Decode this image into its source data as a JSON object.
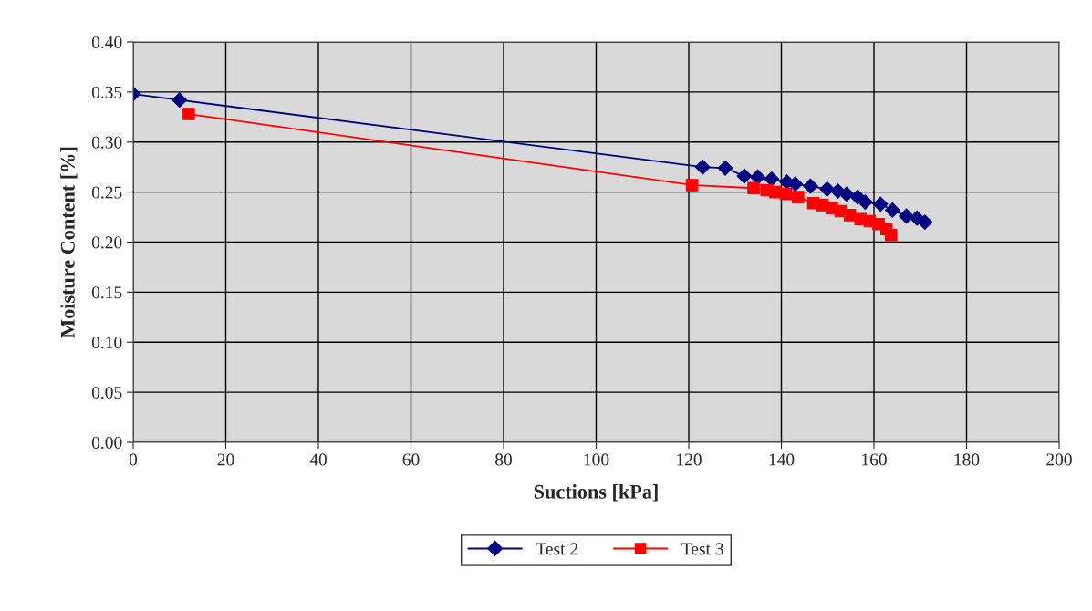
{
  "chart_data": {
    "type": "line",
    "xlabel": "Suctions [kPa]",
    "ylabel": "Moisture Content [%]",
    "xlim": [
      0,
      200
    ],
    "xticks": [
      0,
      20,
      40,
      60,
      80,
      100,
      120,
      140,
      160,
      180,
      200
    ],
    "ylim": [
      0,
      0.4
    ],
    "yticks": [
      {
        "value": 0,
        "label": "0.00"
      },
      {
        "value": 0.05,
        "label": "0.05"
      },
      {
        "value": 0.1,
        "label": "0.10"
      },
      {
        "value": 0.15,
        "label": "0.15"
      },
      {
        "value": 0.2,
        "label": "0.20"
      },
      {
        "value": 0.25,
        "label": "0.25"
      },
      {
        "value": 0.3,
        "label": "0.30"
      },
      {
        "value": 0.35,
        "label": "0.35"
      },
      {
        "value": 0.4,
        "label": "0.40"
      }
    ],
    "grid": true,
    "legend": "bottom",
    "line_style": "solid",
    "series": [
      {
        "name": "Test 2",
        "color": "#000080",
        "marker": "diamond",
        "x": [
          0,
          10,
          123,
          127.9,
          132,
          134.9,
          137.9,
          141.2,
          143,
          146.3,
          149.9,
          152.2,
          154.1,
          156.5,
          158.1,
          161.4,
          164,
          167,
          169.3,
          171
        ],
        "values": [
          0.348,
          0.342,
          0.275,
          0.274,
          0.266,
          0.265,
          0.263,
          0.26,
          0.258,
          0.256,
          0.253,
          0.251,
          0.248,
          0.245,
          0.24,
          0.238,
          0.232,
          0.226,
          0.224,
          0.22
        ]
      },
      {
        "name": "Test 3",
        "color": "#ff0000",
        "marker": "square",
        "x": [
          12,
          120.7,
          134,
          136.8,
          138.7,
          141,
          143.6,
          146.9,
          148.9,
          150.9,
          152.8,
          154.8,
          157.1,
          159.1,
          161,
          162.7,
          163.7
        ],
        "values": [
          0.328,
          0.257,
          0.254,
          0.252,
          0.25,
          0.248,
          0.245,
          0.239,
          0.237,
          0.234,
          0.231,
          0.227,
          0.223,
          0.221,
          0.218,
          0.213,
          0.207
        ]
      }
    ]
  }
}
